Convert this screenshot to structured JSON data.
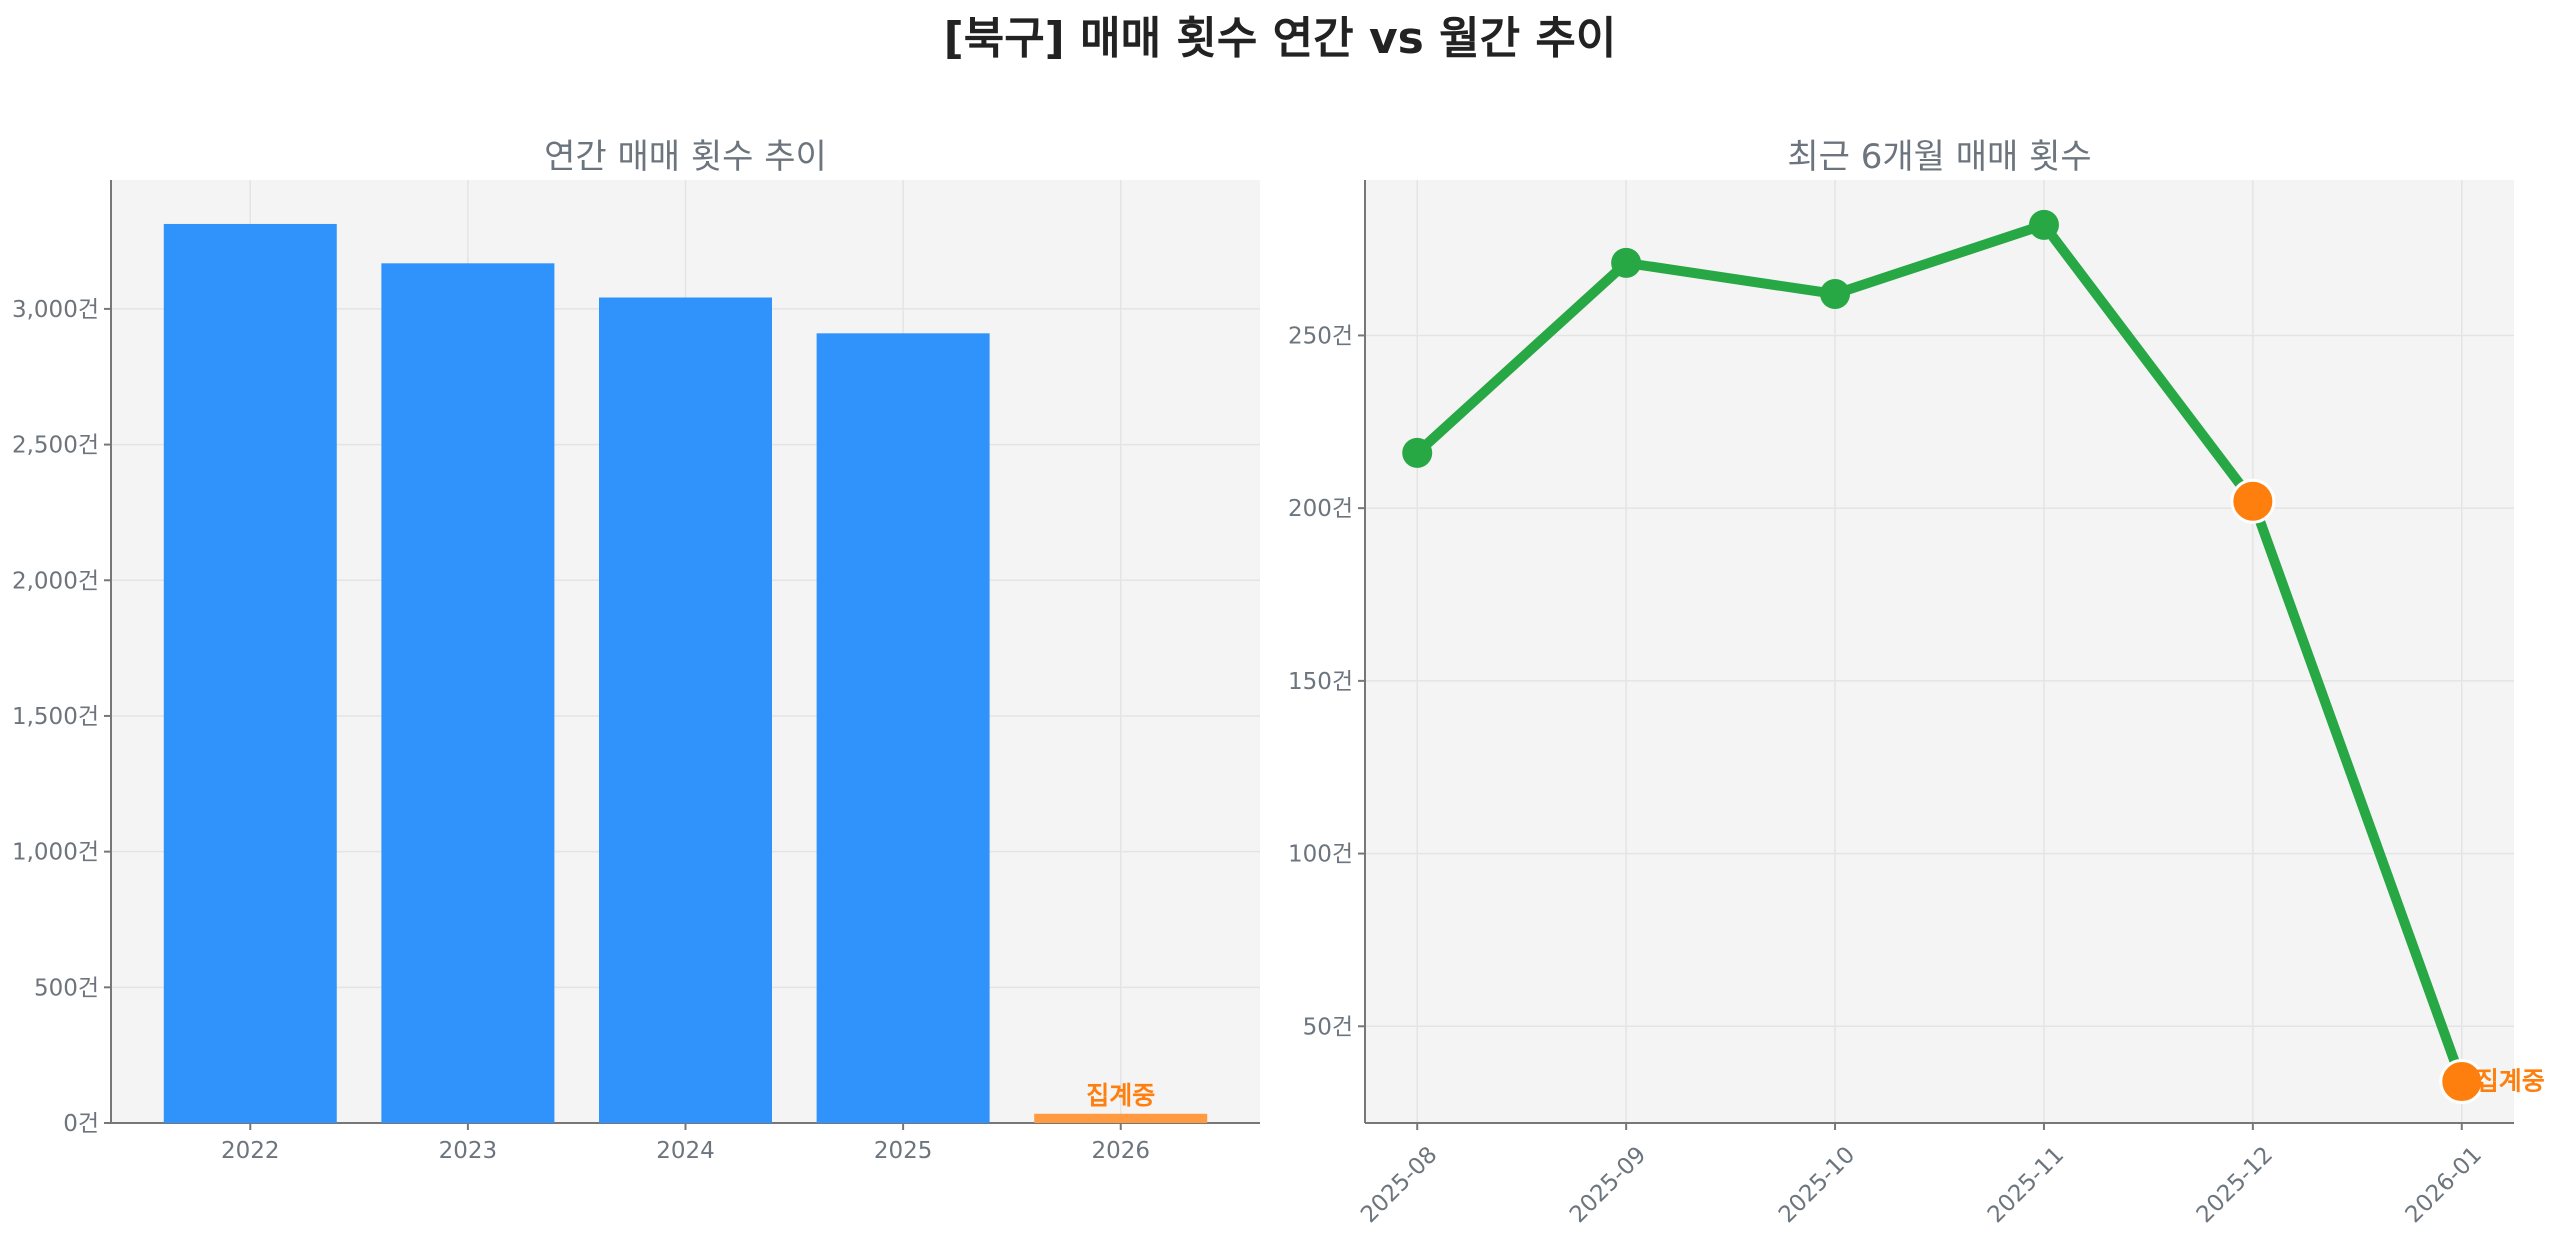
{
  "title": "[북구] 매매 횟수 연간 vs 월간 추이",
  "colors": {
    "bar": "#3093fb",
    "bar_partial": "#ff9a40",
    "line": "#28a745",
    "highlight": "#ff7f0e",
    "annotation": "#ff7f0e"
  },
  "chart_data": [
    {
      "type": "bar",
      "title": "연간 매매 횟수 추이",
      "categories": [
        "2022",
        "2023",
        "2024",
        "2025",
        "2026"
      ],
      "values": [
        3313,
        3168,
        3042,
        2910,
        34
      ],
      "partial_index": 4,
      "annotation": "집계중",
      "ylim": [
        0,
        3475
      ],
      "yticks": [
        0,
        500,
        1000,
        1500,
        2000,
        2500,
        3000
      ],
      "ytick_labels": [
        "0건",
        "500건",
        "1,000건",
        "1,500건",
        "2,000건",
        "2,500건",
        "3,000건"
      ],
      "grid": true
    },
    {
      "type": "line",
      "title": "최근 6개월 매매 횟수",
      "categories": [
        "2025-08",
        "2025-09",
        "2025-10",
        "2025-11",
        "2025-12",
        "2026-01"
      ],
      "values": [
        216,
        271,
        262,
        282,
        202,
        34
      ],
      "highlight_indices": [
        4,
        5
      ],
      "annotation": "집계중",
      "ylim": [
        22,
        295
      ],
      "yticks": [
        50,
        100,
        150,
        200,
        250
      ],
      "ytick_labels": [
        "50건",
        "100건",
        "150건",
        "200건",
        "250건"
      ],
      "grid": true
    }
  ]
}
